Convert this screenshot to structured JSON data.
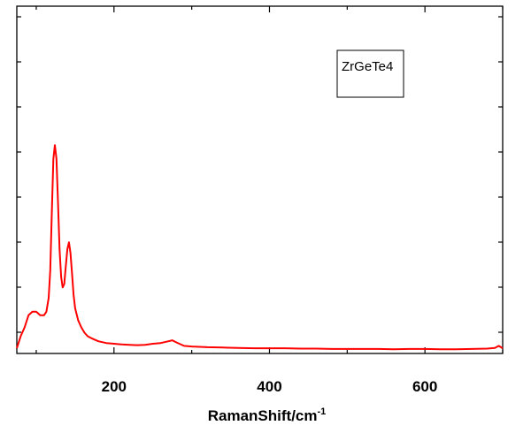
{
  "chart_data": {
    "type": "line",
    "title": "",
    "xlabel": "RamanShift/cm",
    "xlabel_superscript": "-1",
    "ylabel": "",
    "xlim": [
      75,
      700
    ],
    "ylim": [
      0,
      1
    ],
    "xticks": [
      200,
      400,
      600
    ],
    "grid": false,
    "legend_position": "top-right",
    "series": [
      {
        "name": "ZrGeTe4",
        "color": "#ff0000",
        "x": [
          75,
          80,
          85,
          90,
          95,
          100,
          105,
          110,
          113,
          116,
          118,
          120,
          122,
          124,
          126,
          128,
          130,
          132,
          134,
          136,
          138,
          140,
          142,
          144,
          146,
          148,
          150,
          154,
          158,
          162,
          166,
          170,
          175,
          180,
          190,
          200,
          210,
          220,
          230,
          240,
          250,
          260,
          270,
          275,
          280,
          290,
          300,
          320,
          340,
          360,
          380,
          400,
          420,
          440,
          460,
          480,
          500,
          520,
          540,
          560,
          580,
          600,
          620,
          640,
          660,
          680,
          690,
          695,
          700
        ],
        "y": [
          0.015,
          0.05,
          0.075,
          0.11,
          0.12,
          0.12,
          0.11,
          0.11,
          0.12,
          0.16,
          0.24,
          0.4,
          0.56,
          0.6,
          0.56,
          0.43,
          0.3,
          0.22,
          0.19,
          0.2,
          0.25,
          0.3,
          0.32,
          0.29,
          0.23,
          0.17,
          0.13,
          0.095,
          0.075,
          0.06,
          0.05,
          0.045,
          0.04,
          0.035,
          0.03,
          0.028,
          0.026,
          0.025,
          0.024,
          0.025,
          0.028,
          0.03,
          0.035,
          0.038,
          0.032,
          0.022,
          0.02,
          0.018,
          0.017,
          0.016,
          0.015,
          0.015,
          0.015,
          0.014,
          0.014,
          0.013,
          0.013,
          0.013,
          0.013,
          0.012,
          0.013,
          0.013,
          0.012,
          0.012,
          0.013,
          0.014,
          0.016,
          0.022,
          0.015
        ]
      }
    ]
  }
}
